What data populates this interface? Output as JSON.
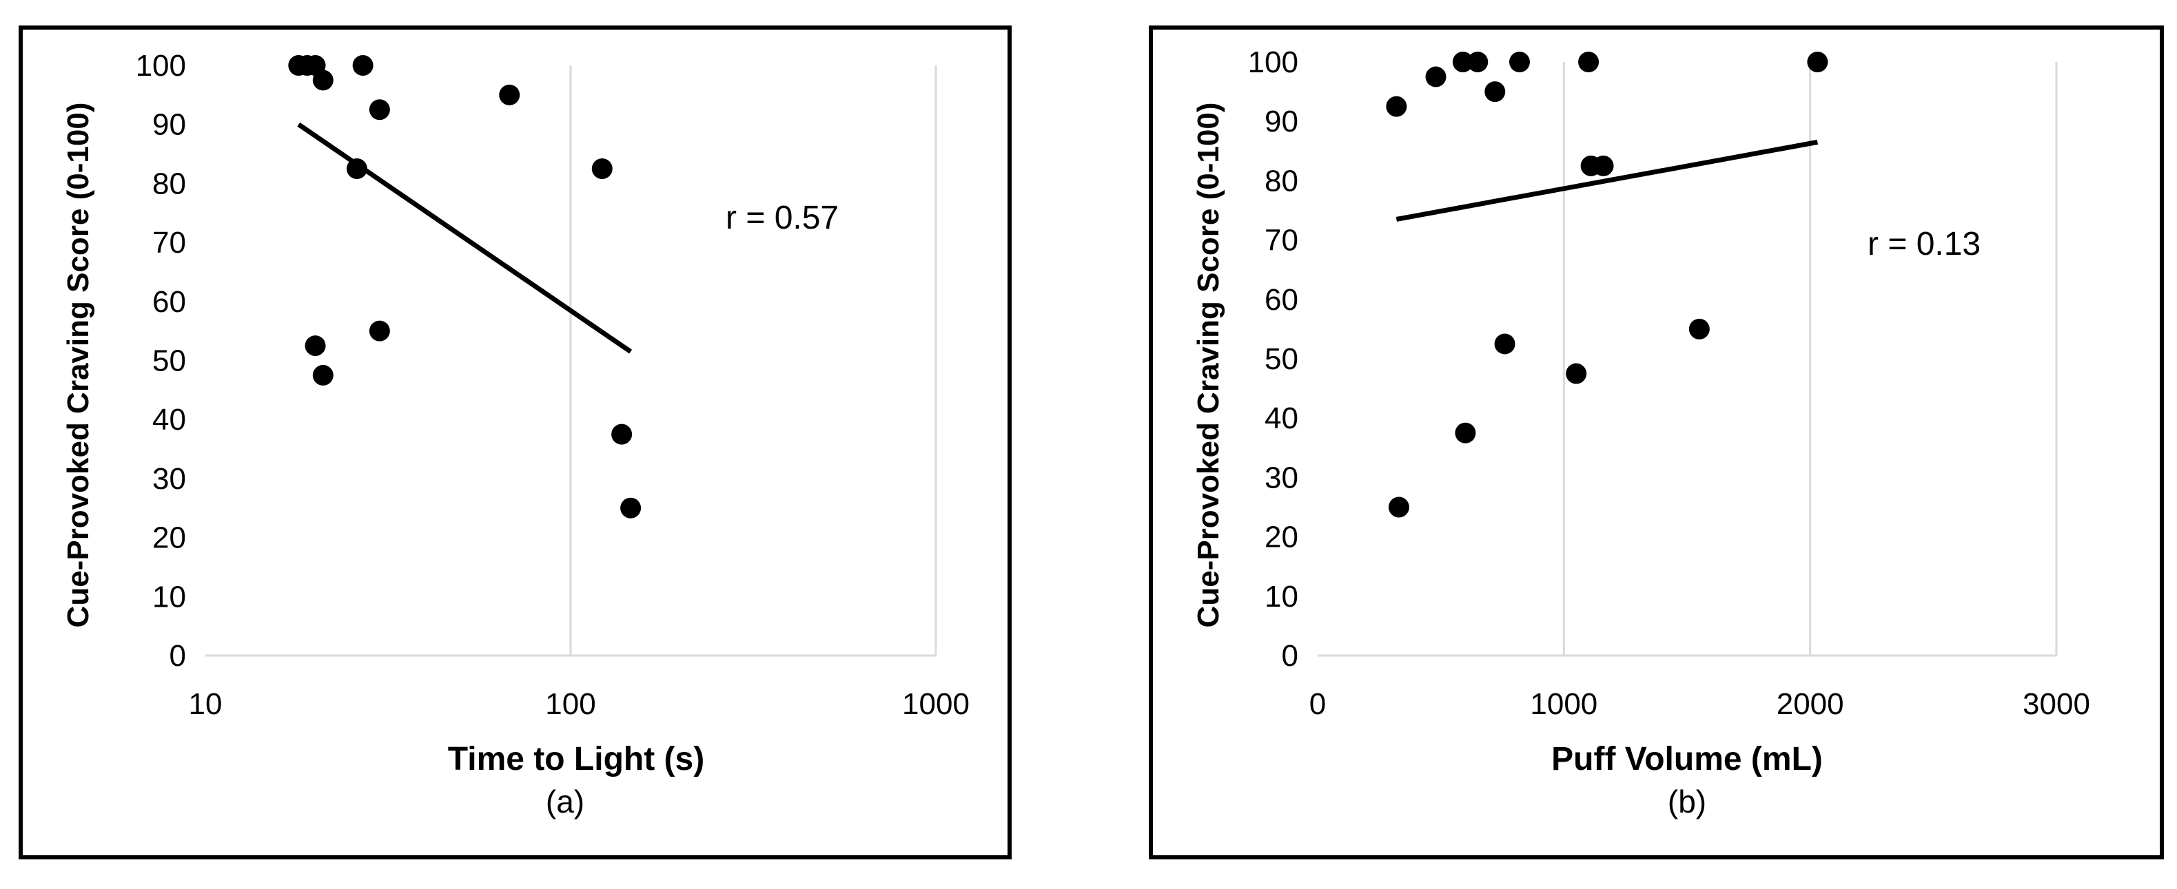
{
  "colors": {
    "frame": "#000000",
    "grid": "#d9d9d9",
    "marker": "#000000",
    "trend": "#000000"
  },
  "chart_data": [
    {
      "type": "scatter",
      "caption": "(a)",
      "xlabel": "Time to Light (s)",
      "ylabel": "Cue-Provoked Craving Score (0-100)",
      "x_scale": "log",
      "xlim": [
        10,
        1000
      ],
      "ylim": [
        0,
        100
      ],
      "x_ticks": [
        "10",
        "100",
        "1000"
      ],
      "y_ticks": [
        "0",
        "10",
        "20",
        "30",
        "40",
        "50",
        "60",
        "70",
        "80",
        "90",
        "100"
      ],
      "annotation": "r = 0.57",
      "grid": "vertical",
      "points": [
        {
          "x": 18,
          "y": 100
        },
        {
          "x": 19,
          "y": 100
        },
        {
          "x": 20,
          "y": 100
        },
        {
          "x": 21,
          "y": 97.5
        },
        {
          "x": 27,
          "y": 100
        },
        {
          "x": 30,
          "y": 92.5
        },
        {
          "x": 26,
          "y": 82.5
        },
        {
          "x": 68,
          "y": 95
        },
        {
          "x": 122,
          "y": 82.5
        },
        {
          "x": 20,
          "y": 52.5
        },
        {
          "x": 21,
          "y": 47.5
        },
        {
          "x": 30,
          "y": 55
        },
        {
          "x": 138,
          "y": 37.5
        },
        {
          "x": 146,
          "y": 25
        }
      ],
      "trendline": [
        {
          "x": 18,
          "y": 90
        },
        {
          "x": 146,
          "y": 51.5
        }
      ]
    },
    {
      "type": "scatter",
      "caption": "(b)",
      "xlabel": "Puff Volume (mL)",
      "ylabel": "Cue-Provoked Craving Score (0-100)",
      "x_scale": "linear",
      "xlim": [
        0,
        3000
      ],
      "ylim": [
        0,
        100
      ],
      "x_ticks": [
        "0",
        "1000",
        "2000",
        "3000"
      ],
      "y_ticks": [
        "0",
        "10",
        "20",
        "30",
        "40",
        "50",
        "60",
        "70",
        "80",
        "90",
        "100"
      ],
      "annotation": "r = 0.13",
      "grid": "vertical",
      "points": [
        {
          "x": 320,
          "y": 92.5
        },
        {
          "x": 480,
          "y": 97.5
        },
        {
          "x": 590,
          "y": 100
        },
        {
          "x": 650,
          "y": 100
        },
        {
          "x": 720,
          "y": 95
        },
        {
          "x": 820,
          "y": 100
        },
        {
          "x": 1100,
          "y": 100
        },
        {
          "x": 1110,
          "y": 82.5
        },
        {
          "x": 1160,
          "y": 82.5
        },
        {
          "x": 2030,
          "y": 100
        },
        {
          "x": 760,
          "y": 52.5
        },
        {
          "x": 1050,
          "y": 47.5
        },
        {
          "x": 1550,
          "y": 55
        },
        {
          "x": 600,
          "y": 37.5
        },
        {
          "x": 330,
          "y": 25
        }
      ],
      "trendline": [
        {
          "x": 320,
          "y": 73.5
        },
        {
          "x": 2030,
          "y": 86.5
        }
      ]
    }
  ]
}
